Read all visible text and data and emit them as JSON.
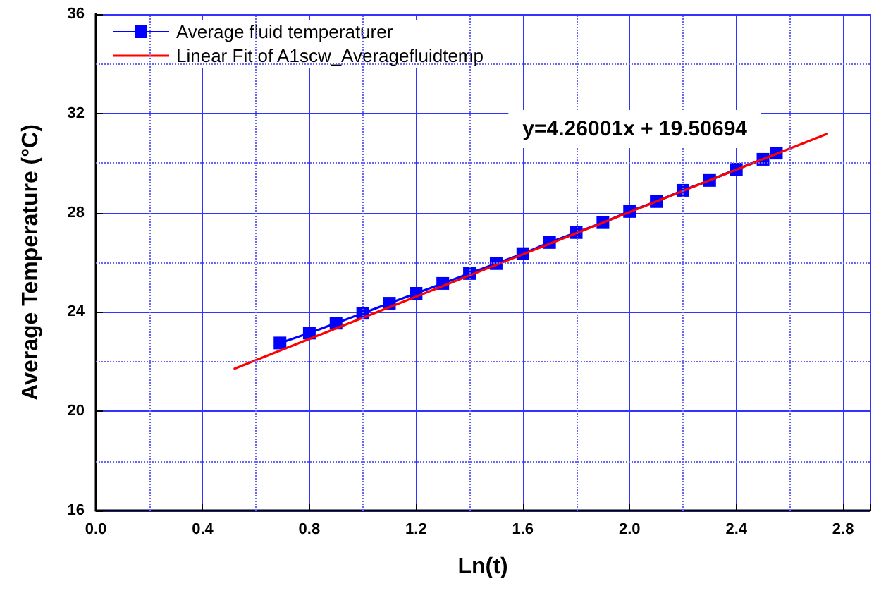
{
  "chart_data": {
    "type": "line",
    "xlabel": "Ln(t)",
    "ylabel": "Average Temperature (°C)",
    "xlim": [
      0,
      2.9
    ],
    "xticks": [
      {
        "value": 0,
        "label": "0.0"
      },
      {
        "value": 0.2,
        "label": null
      },
      {
        "value": 0.4,
        "label": "0.4"
      },
      {
        "value": 0.6,
        "label": null
      },
      {
        "value": 0.8,
        "label": "0.8"
      },
      {
        "value": 1.0,
        "label": null
      },
      {
        "value": 1.2,
        "label": "1.2"
      },
      {
        "value": 1.4,
        "label": null
      },
      {
        "value": 1.6,
        "label": "1.6"
      },
      {
        "value": 1.8,
        "label": null
      },
      {
        "value": 2.0,
        "label": "2.0"
      },
      {
        "value": 2.2,
        "label": null
      },
      {
        "value": 2.4,
        "label": "2.4"
      },
      {
        "value": 2.6,
        "label": null
      },
      {
        "value": 2.8,
        "label": "2.8"
      }
    ],
    "ylim": [
      16,
      36
    ],
    "yticks": [
      16,
      {
        "value": 18,
        "label": null
      },
      20,
      {
        "value": 22,
        "label": null
      },
      24,
      {
        "value": 26,
        "label": null
      },
      28,
      {
        "value": 30,
        "label": null
      },
      32,
      {
        "value": 34,
        "label": null
      },
      36
    ],
    "grid": true,
    "legend": "top left",
    "annotations": [
      "y=4.26001x + 19.50694"
    ],
    "series": [
      {
        "name": "Average fluid temperaturer",
        "color": "#0000ff",
        "marker": "square",
        "line_style": "solid",
        "x": [
          0.69,
          0.8,
          0.9,
          1.0,
          1.1,
          1.2,
          1.3,
          1.4,
          1.5,
          1.6,
          1.7,
          1.8,
          1.9,
          2.0,
          2.1,
          2.2,
          2.3,
          2.4,
          2.5,
          2.55
        ],
        "values": [
          22.75,
          23.15,
          23.55,
          23.95,
          24.35,
          24.75,
          25.15,
          25.55,
          25.95,
          26.35,
          26.8,
          27.2,
          27.6,
          28.05,
          28.45,
          28.9,
          29.3,
          29.75,
          30.15,
          30.4
        ]
      },
      {
        "name": "Linear Fit of A1scw_Averagefluidtemp",
        "color": "#ff0000",
        "marker": "none",
        "line_style": "solid",
        "x": [
          0.52,
          2.74
        ],
        "values": [
          21.72,
          31.18
        ]
      }
    ]
  }
}
